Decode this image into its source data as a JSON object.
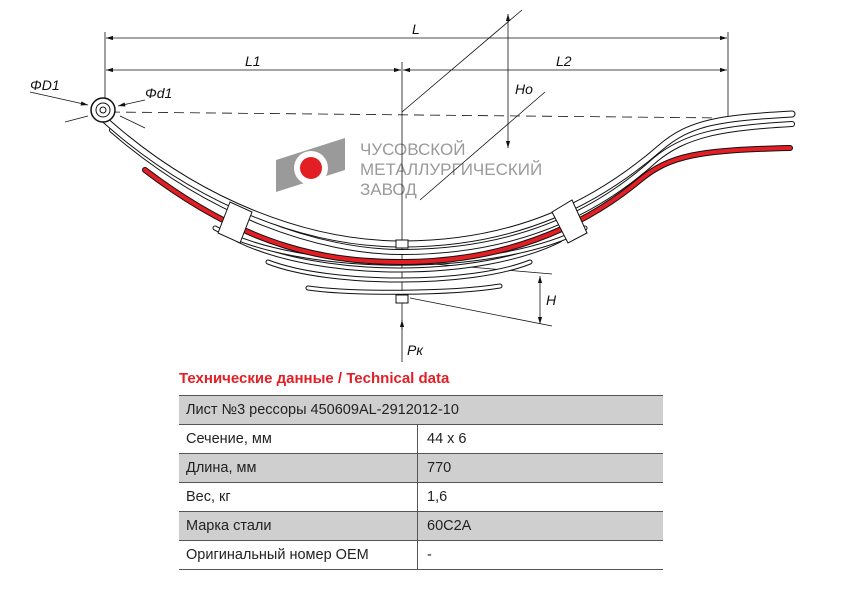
{
  "drawing": {
    "labels": {
      "L": "L",
      "L1": "L1",
      "L2": "L2",
      "Ho": "Ho",
      "H": "H",
      "D1": "ΦD1",
      "d1": "Φd1",
      "Pk": "Pк"
    },
    "colors": {
      "accent_leaf": "#e31e24",
      "line": "#111111",
      "logo_gray": "#9a9a9a"
    }
  },
  "logo": {
    "line1": "ЧУСОВСКОЙ",
    "line2": "МЕТАЛЛУРГИЧЕСКИЙ",
    "line3": "ЗАВОД"
  },
  "spec": {
    "title": "Технические данные / Technical data",
    "header": "Лист №3 рессоры 450609AL-2912012-10",
    "rows": [
      {
        "label": "Сечение, мм",
        "value": "44 x 6"
      },
      {
        "label": "Длина, мм",
        "value": "770"
      },
      {
        "label": "Вес, кг",
        "value": "1,6"
      },
      {
        "label": "Марка стали",
        "value": "60С2А"
      },
      {
        "label": "Оригинальный номер OEM",
        "value": "-"
      }
    ]
  }
}
